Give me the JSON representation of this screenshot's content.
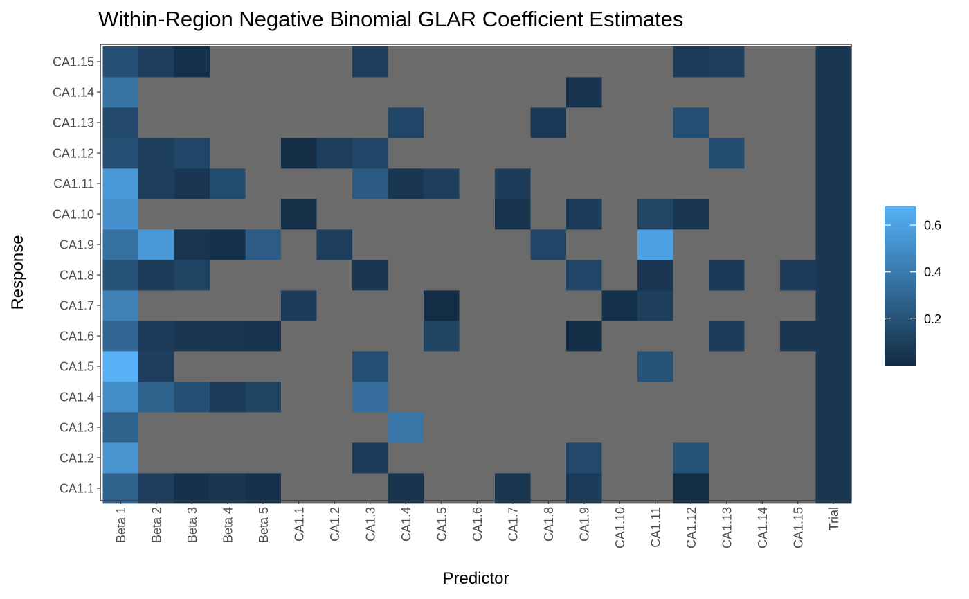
{
  "chart_data": {
    "type": "heatmap",
    "title": "Within-Region Negative Binomial GLAR Coefficient Estimates",
    "xlabel": "Predictor",
    "ylabel": "Response",
    "x_categories": [
      "Beta 1",
      "Beta 2",
      "Beta 3",
      "Beta 4",
      "Beta 5",
      "CA1.1",
      "CA1.2",
      "CA1.3",
      "CA1.4",
      "CA1.5",
      "CA1.6",
      "CA1.7",
      "CA1.8",
      "CA1.9",
      "CA1.10",
      "CA1.11",
      "CA1.12",
      "CA1.13",
      "CA1.14",
      "CA1.15",
      "Trial"
    ],
    "y_categories": [
      "CA1.1",
      "CA1.2",
      "CA1.3",
      "CA1.4",
      "CA1.5",
      "CA1.6",
      "CA1.7",
      "CA1.8",
      "CA1.9",
      "CA1.10",
      "CA1.11",
      "CA1.12",
      "CA1.13",
      "CA1.14",
      "CA1.15"
    ],
    "values": [
      [
        0.28,
        0.1,
        0.03,
        0.06,
        0.03,
        null,
        null,
        null,
        0.04,
        null,
        null,
        0.05,
        null,
        0.08,
        null,
        null,
        0.01,
        null,
        null,
        null,
        0.06
      ],
      [
        0.54,
        null,
        null,
        null,
        null,
        null,
        null,
        0.08,
        null,
        null,
        null,
        null,
        null,
        0.15,
        null,
        null,
        0.2,
        null,
        null,
        null,
        0.06
      ],
      [
        0.28,
        null,
        null,
        null,
        null,
        null,
        null,
        null,
        0.38,
        null,
        null,
        null,
        null,
        null,
        null,
        null,
        null,
        null,
        null,
        null,
        0.06
      ],
      [
        0.5,
        0.28,
        0.18,
        0.08,
        0.12,
        null,
        null,
        0.34,
        null,
        null,
        null,
        null,
        null,
        null,
        null,
        null,
        null,
        null,
        null,
        null,
        0.06
      ],
      [
        0.68,
        0.1,
        null,
        null,
        null,
        null,
        null,
        0.18,
        null,
        null,
        null,
        null,
        null,
        null,
        null,
        0.2,
        null,
        null,
        null,
        null,
        0.06
      ],
      [
        0.3,
        0.08,
        0.06,
        0.05,
        0.04,
        null,
        null,
        null,
        null,
        0.12,
        null,
        null,
        null,
        0.01,
        null,
        null,
        null,
        0.08,
        null,
        0.06,
        0.06
      ],
      [
        0.44,
        null,
        null,
        null,
        null,
        0.08,
        null,
        null,
        null,
        0.01,
        null,
        null,
        null,
        null,
        0.03,
        0.1,
        null,
        null,
        null,
        null,
        0.06
      ],
      [
        0.2,
        0.08,
        0.12,
        null,
        null,
        null,
        null,
        0.06,
        null,
        null,
        null,
        null,
        null,
        0.14,
        null,
        0.06,
        null,
        0.07,
        null,
        0.08,
        0.06
      ],
      [
        0.35,
        0.55,
        0.05,
        0.03,
        0.25,
        null,
        0.1,
        null,
        null,
        null,
        null,
        null,
        0.14,
        null,
        null,
        0.6,
        null,
        null,
        null,
        null,
        0.06
      ],
      [
        0.52,
        null,
        null,
        null,
        null,
        0.02,
        null,
        null,
        null,
        null,
        null,
        0.04,
        null,
        0.08,
        null,
        0.13,
        0.06,
        null,
        null,
        null,
        0.06
      ],
      [
        0.56,
        0.1,
        0.06,
        0.16,
        null,
        null,
        null,
        0.24,
        0.06,
        0.1,
        null,
        0.08,
        null,
        null,
        null,
        null,
        null,
        null,
        null,
        null,
        0.06
      ],
      [
        0.18,
        0.1,
        0.14,
        null,
        null,
        0.01,
        0.1,
        0.14,
        null,
        null,
        null,
        null,
        null,
        null,
        null,
        null,
        null,
        0.16,
        null,
        null,
        0.06
      ],
      [
        0.15,
        null,
        null,
        null,
        null,
        null,
        null,
        null,
        0.14,
        null,
        null,
        null,
        0.07,
        null,
        null,
        null,
        0.18,
        null,
        null,
        null,
        0.06
      ],
      [
        0.36,
        null,
        null,
        null,
        null,
        null,
        null,
        null,
        null,
        null,
        null,
        null,
        null,
        0.04,
        null,
        null,
        null,
        null,
        null,
        null,
        0.06
      ],
      [
        0.18,
        0.1,
        0.03,
        null,
        null,
        null,
        null,
        0.1,
        null,
        null,
        null,
        null,
        null,
        null,
        null,
        null,
        0.08,
        0.1,
        null,
        null,
        0.06
      ]
    ],
    "na_color": "#6b6b6b",
    "color_low": "#132b43",
    "color_high": "#56b1f7",
    "value_range": [
      0.0,
      0.68
    ],
    "legend": {
      "position": "right",
      "ticks": [
        "0.2",
        "0.4",
        "0.6"
      ],
      "tick_values": [
        0.2,
        0.4,
        0.6
      ]
    },
    "grid": false
  }
}
